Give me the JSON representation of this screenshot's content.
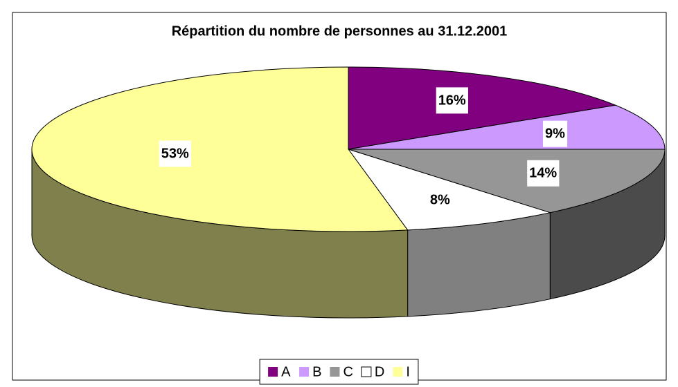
{
  "chart_data": {
    "type": "pie",
    "title": "Répartition du nombre de personnes au 31.12.2001",
    "categories": [
      "A",
      "B",
      "C",
      "D",
      "I"
    ],
    "values": [
      16,
      9,
      14,
      8,
      53
    ],
    "value_labels": [
      "16%",
      "9%",
      "14%",
      "8%",
      "53%"
    ],
    "colors": [
      "#800080",
      "#cc99ff",
      "#969696",
      "#ffffff",
      "#ffff99"
    ],
    "legend": "bottom"
  }
}
